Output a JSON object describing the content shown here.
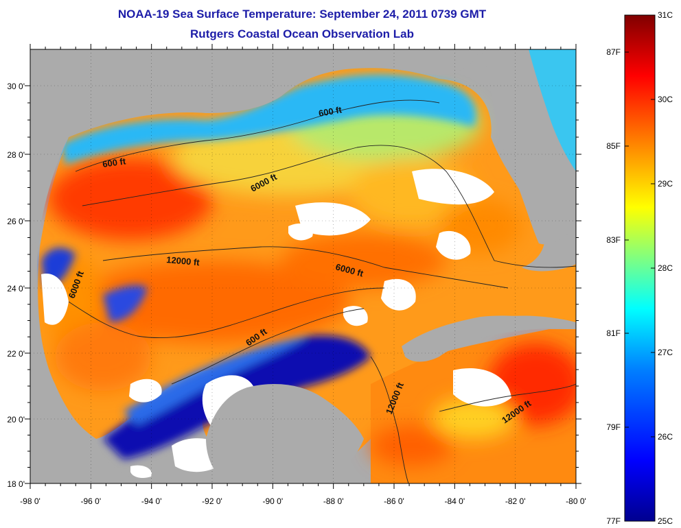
{
  "header": {
    "title": "NOAA-19 Sea Surface Temperature:  September 24, 2011 0739 GMT",
    "subtitle": "Rutgers Coastal Ocean Observation Lab"
  },
  "map": {
    "x_ticks": [
      "-98 0'",
      "-96 0'",
      "-94 0'",
      "-92 0'",
      "-90 0'",
      "-88 0'",
      "-86 0'",
      "-84 0'",
      "-82 0'",
      "-80 0'"
    ],
    "y_ticks": [
      "30 0'",
      "28 0'",
      "26 0'",
      "24 0'",
      "22 0'",
      "20 0'",
      "18 0'"
    ],
    "contour_labels": [
      "600 ft",
      "600 ft",
      "6000 ft",
      "12000 ft",
      "6000 ft",
      "6000 ft",
      "600 ft",
      "12000 ft",
      "12000 ft"
    ]
  },
  "colorbar": {
    "celsius": [
      "31C",
      "30C",
      "29C",
      "28C",
      "27C",
      "26C",
      "25C"
    ],
    "fahrenheit": [
      "87F",
      "85F",
      "83F",
      "81F",
      "79F",
      "77F"
    ],
    "colors": [
      "#00008f",
      "#0000ff",
      "#0080ff",
      "#00ffff",
      "#80ff80",
      "#ffff00",
      "#ff8000",
      "#ff0000",
      "#800000"
    ]
  },
  "colors": {
    "land": "#ababab",
    "clouds": "#ffffff",
    "title": "#1c1ca8"
  }
}
